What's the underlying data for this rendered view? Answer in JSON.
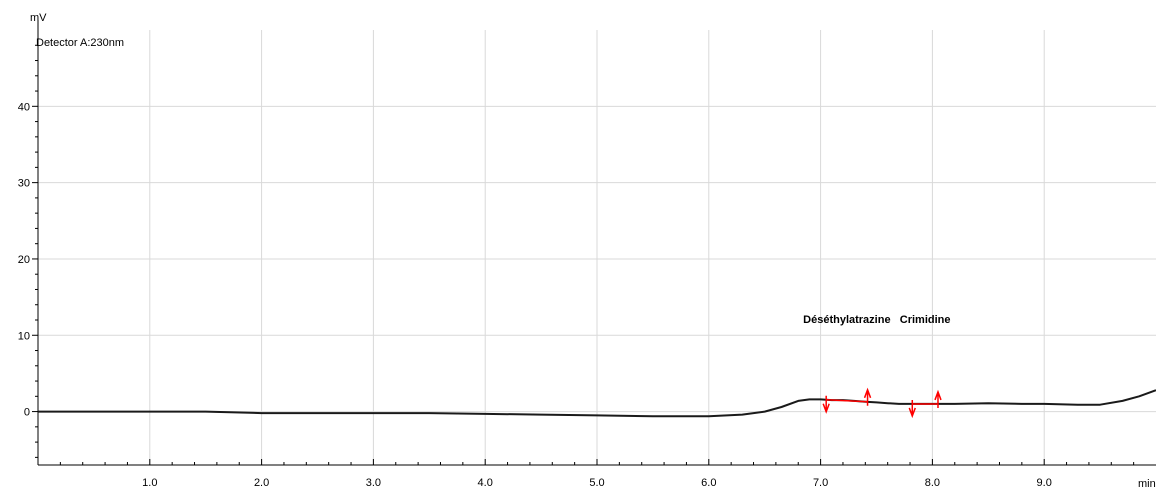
{
  "chart_data": {
    "type": "line",
    "ylabel": "mV",
    "xlabel": "min",
    "detector_label": "Detector A:230nm",
    "xlim": [
      0,
      10
    ],
    "ylim": [
      -7,
      50
    ],
    "grid": true,
    "x_ticks": [
      1.0,
      2.0,
      3.0,
      4.0,
      5.0,
      6.0,
      7.0,
      8.0,
      9.0
    ],
    "x_tick_labels": [
      "1.0",
      "2.0",
      "3.0",
      "4.0",
      "5.0",
      "6.0",
      "7.0",
      "8.0",
      "9.0"
    ],
    "y_ticks": [
      0,
      10,
      20,
      30,
      40
    ],
    "y_tick_labels": [
      "0",
      "10",
      "20",
      "30",
      "40"
    ],
    "series": [
      {
        "color": "#1a1a1a",
        "x": [
          0.0,
          0.5,
          1.0,
          1.5,
          2.0,
          2.5,
          3.0,
          3.5,
          4.0,
          4.5,
          5.0,
          5.5,
          6.0,
          6.3,
          6.5,
          6.65,
          6.8,
          6.9,
          7.0,
          7.1,
          7.2,
          7.3,
          7.4,
          7.5,
          7.6,
          7.7,
          7.8,
          7.9,
          8.0,
          8.2,
          8.5,
          8.8,
          9.0,
          9.3,
          9.5,
          9.7,
          9.85,
          10.0
        ],
        "y": [
          0.0,
          0.0,
          0.0,
          0.0,
          -0.2,
          -0.2,
          -0.2,
          -0.2,
          -0.3,
          -0.4,
          -0.5,
          -0.6,
          -0.6,
          -0.4,
          0.0,
          0.6,
          1.4,
          1.6,
          1.6,
          1.5,
          1.5,
          1.4,
          1.3,
          1.2,
          1.1,
          1.0,
          1.0,
          1.0,
          1.0,
          1.0,
          1.1,
          1.0,
          1.0,
          0.9,
          0.9,
          1.4,
          2.0,
          2.8
        ]
      }
    ],
    "peaks": [
      {
        "name": "Déséthylatrazine",
        "start": 7.05,
        "end": 7.42,
        "color": "#ff0000"
      },
      {
        "name": "Crimidine",
        "start": 7.82,
        "end": 8.05,
        "color": "#ff0000"
      }
    ]
  }
}
